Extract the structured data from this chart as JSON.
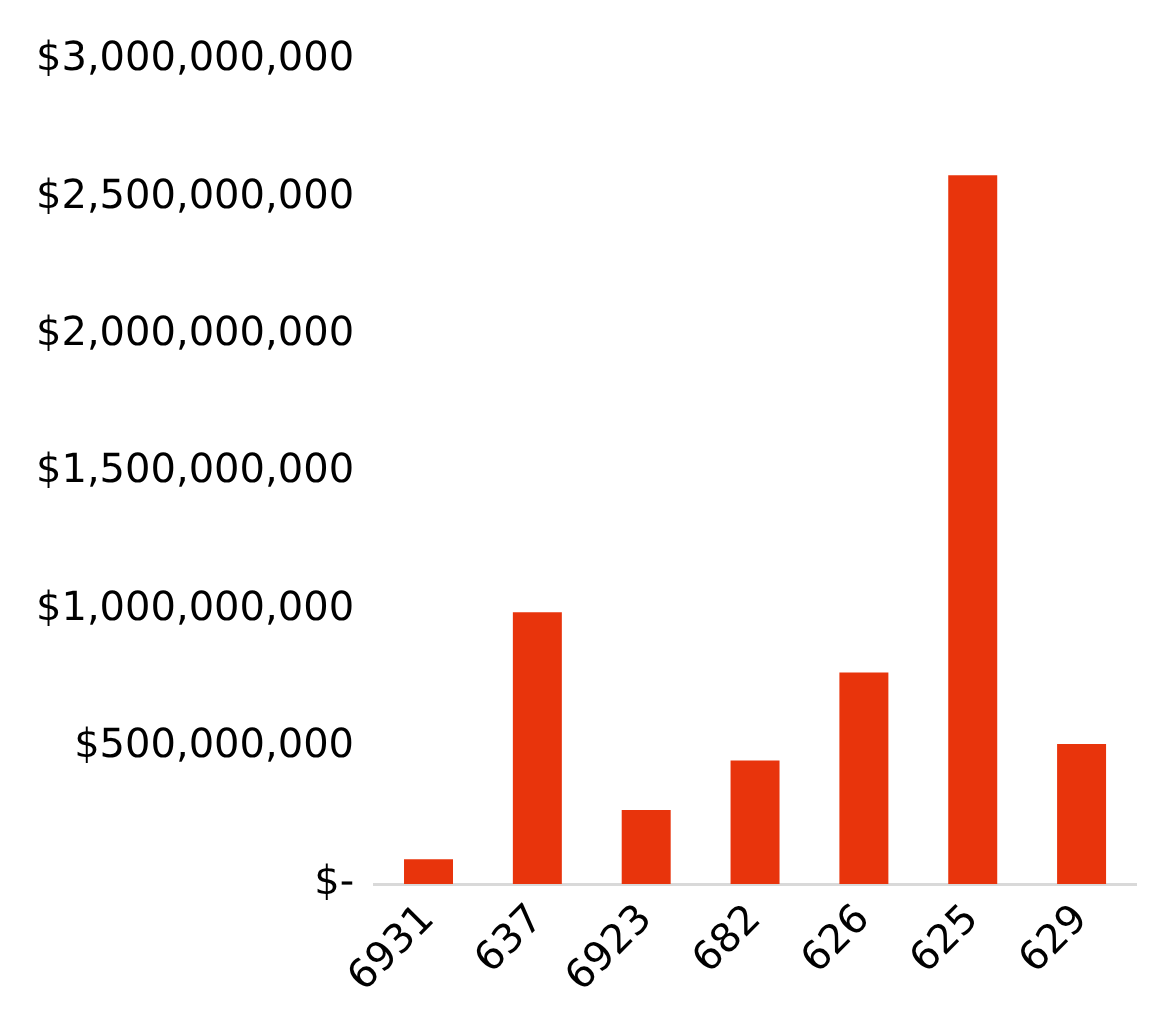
{
  "chart_data": {
    "type": "bar",
    "categories": [
      "6931",
      "637",
      "6923",
      "682",
      "626",
      "625",
      "629"
    ],
    "values": [
      90000000,
      990000000,
      270000000,
      450000000,
      770000000,
      2580000000,
      510000000
    ],
    "color": "#e8340c",
    "ylim": [
      0,
      3000000000
    ],
    "yticks": [
      {
        "value": 0,
        "label": "$-"
      },
      {
        "value": 500000000,
        "label": "$500,000,000"
      },
      {
        "value": 1000000000,
        "label": "$1,000,000,000"
      },
      {
        "value": 1500000000,
        "label": "$1,500,000,000"
      },
      {
        "value": 2000000000,
        "label": "$2,000,000,000"
      },
      {
        "value": 2500000000,
        "label": "$2,500,000,000"
      },
      {
        "value": 3000000000,
        "label": "$3,000,000,000"
      }
    ],
    "grid": false,
    "legend": false
  }
}
